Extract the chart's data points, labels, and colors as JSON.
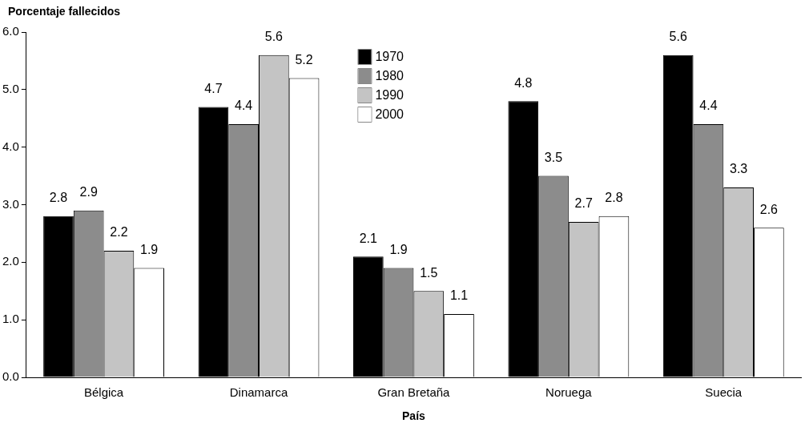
{
  "chart_data": {
    "type": "bar",
    "xlabel": "País",
    "ylabel": "Porcentaje fallecidos",
    "categories": [
      "Bélgica",
      "Dinamarca",
      "Gran Bretaña",
      "Noruega",
      "Suecia"
    ],
    "series": [
      {
        "name": "1970",
        "color": "#000000",
        "values": [
          2.8,
          4.7,
          2.1,
          4.8,
          5.6
        ]
      },
      {
        "name": "1980",
        "color": "#8c8c8c",
        "values": [
          2.9,
          4.4,
          1.9,
          3.5,
          4.4
        ]
      },
      {
        "name": "1990",
        "color": "#c4c4c4",
        "values": [
          2.2,
          5.6,
          1.5,
          2.7,
          3.3
        ]
      },
      {
        "name": "2000",
        "color": "#ffffff",
        "values": [
          1.9,
          5.2,
          1.1,
          2.8,
          2.6
        ]
      }
    ],
    "ylim": [
      0,
      6
    ],
    "yticks": [
      {
        "value": 0,
        "label": "0.0"
      },
      {
        "value": 1,
        "label": "1.0"
      },
      {
        "value": 2,
        "label": "2.0"
      },
      {
        "value": 3,
        "label": "3.0"
      },
      {
        "value": 4,
        "label": "4.0"
      },
      {
        "value": 5,
        "label": "5.0"
      },
      {
        "value": 6,
        "label": "6.0"
      }
    ],
    "data_labels": true,
    "legend": "top",
    "grid": false
  }
}
